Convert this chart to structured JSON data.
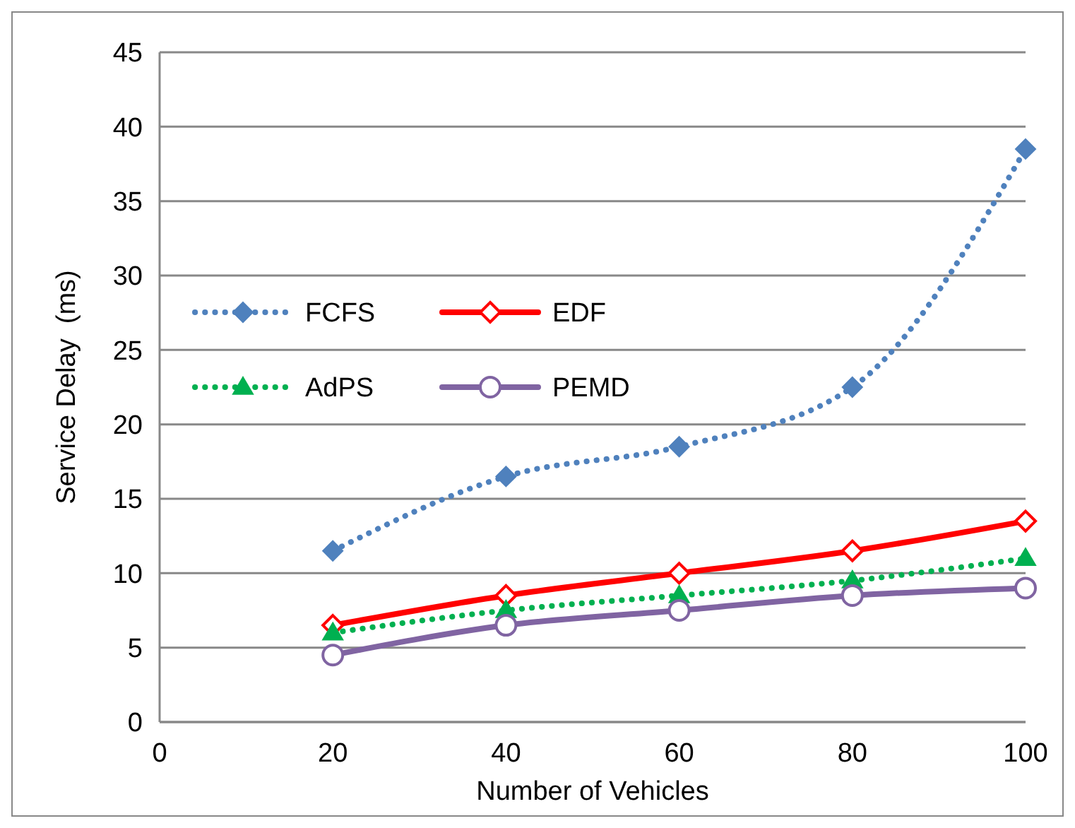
{
  "chart_data": {
    "type": "line",
    "xlabel": "Number of Vehicles",
    "ylabel": "Service Delay  (ms)",
    "x": [
      20,
      40,
      60,
      80,
      100
    ],
    "xlim": [
      0,
      100
    ],
    "xticks": [
      0,
      20,
      40,
      60,
      80,
      100
    ],
    "ylim": [
      0,
      45
    ],
    "yticks": [
      0,
      5,
      10,
      15,
      20,
      25,
      30,
      35,
      40,
      45
    ],
    "grid": "y",
    "legend": "left",
    "series": [
      {
        "name": "FCFS",
        "color": "#4f81bd",
        "marker": "diamond",
        "line_style": "dotted",
        "values": [
          11.5,
          16.5,
          18.5,
          22.5,
          38.5
        ]
      },
      {
        "name": "EDF",
        "color": "#ff0000",
        "marker": "diamond",
        "line_style": "solid",
        "values": [
          6.5,
          8.5,
          10,
          11.5,
          13.5
        ]
      },
      {
        "name": "AdPS",
        "color": "#00b050",
        "marker": "triangle",
        "line_style": "dotted",
        "values": [
          6,
          7.5,
          8.5,
          9.5,
          11
        ]
      },
      {
        "name": "PEMD",
        "color": "#8064a2",
        "marker": "circle",
        "line_style": "solid",
        "values": [
          4.5,
          6.5,
          7.5,
          8.5,
          9
        ]
      }
    ]
  }
}
